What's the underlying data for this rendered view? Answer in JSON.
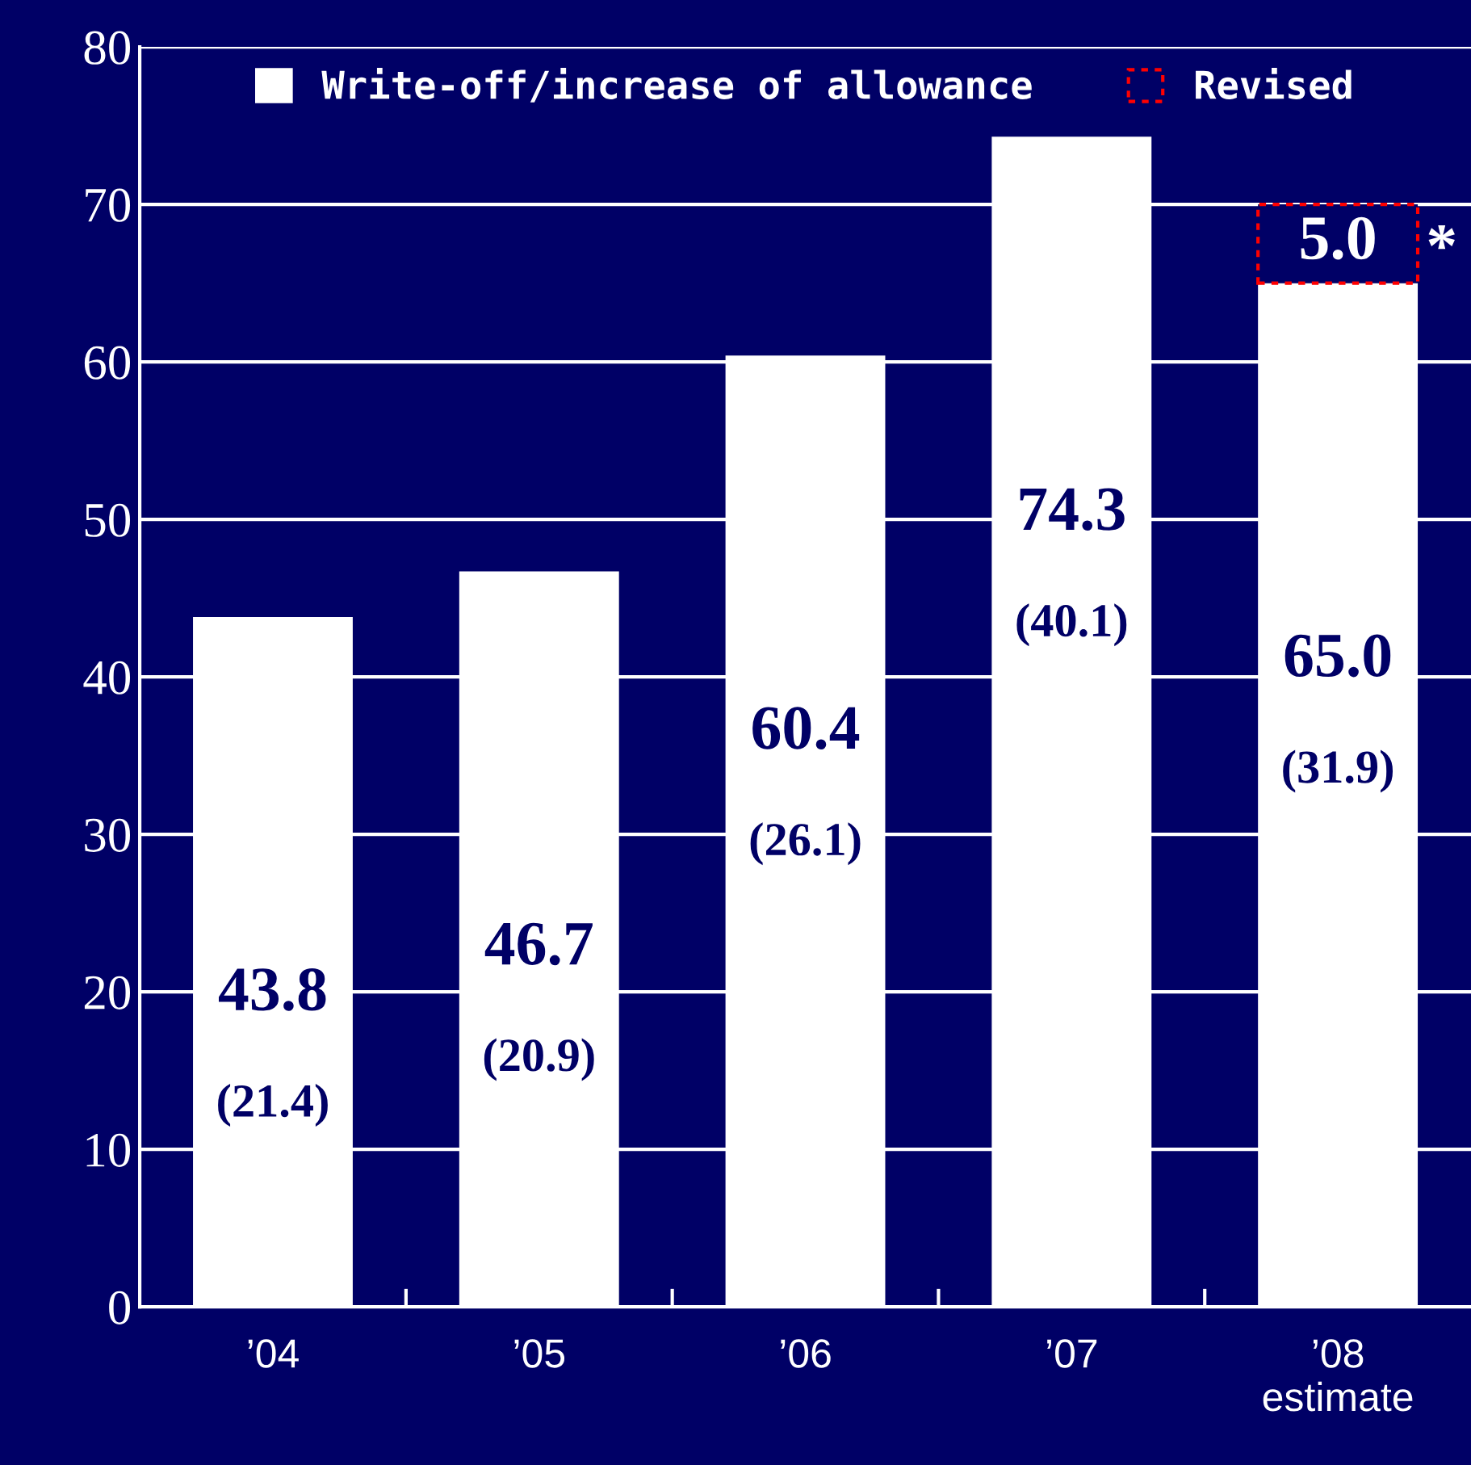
{
  "chart_data": {
    "type": "bar",
    "stacked": true,
    "categories": [
      "’04",
      "’05",
      "’06",
      "’07",
      "’08\nestimate"
    ],
    "series": [
      {
        "name": "Write-off/increase of allowance",
        "color": "#ffffff",
        "values": [
          43.8,
          46.7,
          60.4,
          74.3,
          65.0
        ],
        "value_labels": [
          "43.8",
          "46.7",
          "60.4",
          "74.3",
          "65.0"
        ]
      },
      {
        "name": "Revised",
        "color": "#000066",
        "values": [
          null,
          null,
          null,
          null,
          5.0
        ],
        "value_labels": [
          null,
          null,
          null,
          null,
          "5.0"
        ]
      }
    ],
    "annotations": [
      "(21.4)",
      "(20.9)",
      "(26.1)",
      "(40.1)",
      "(31.9)",
      "*"
    ],
    "ylim": [
      0,
      80
    ],
    "yticks": [
      0,
      10,
      20,
      30,
      40,
      50,
      60,
      70,
      80
    ],
    "grid": "y",
    "legend": "top"
  }
}
